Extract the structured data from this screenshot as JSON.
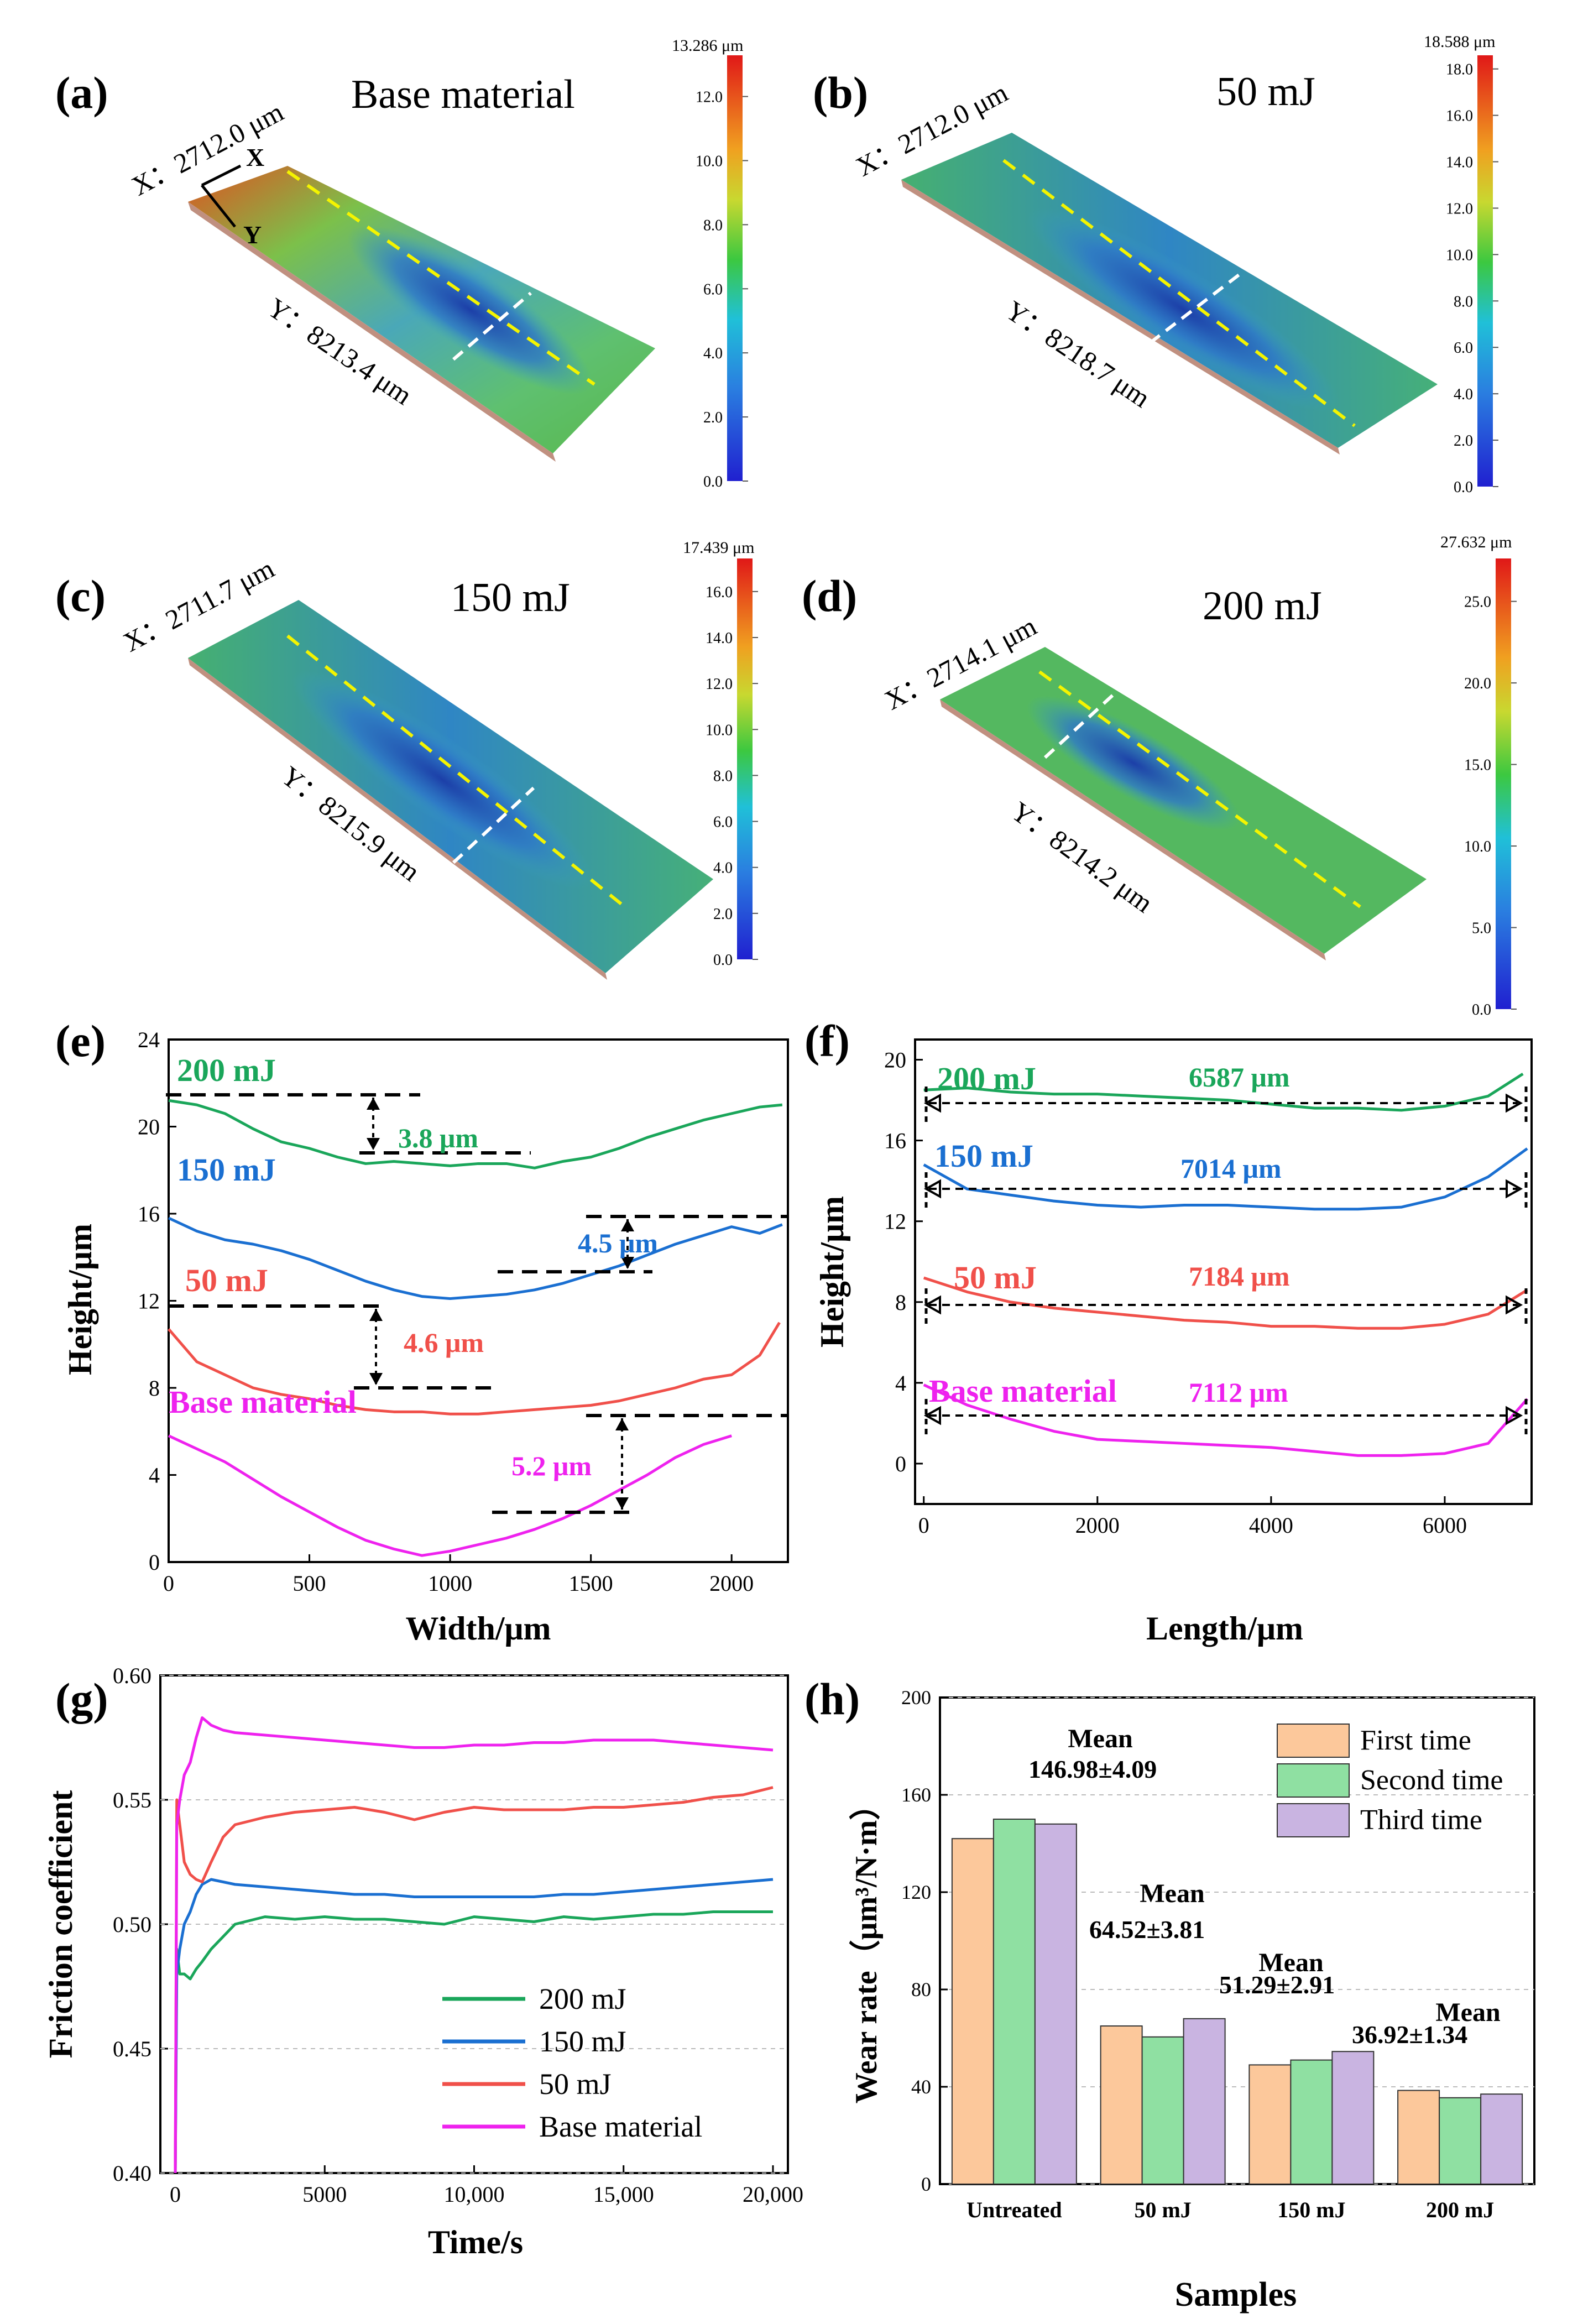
{
  "panels": {
    "a": {
      "tag": "(a)",
      "title": "Base material",
      "x_dim": "X：2712.0 μm",
      "y_dim": "Y：8213.4 μm",
      "scale_max": "13.286 μm",
      "scale_ticks": [
        "0.0",
        "2.0",
        "4.0",
        "6.0",
        "8.0",
        "10.0",
        "12.0"
      ],
      "axis_x": "X",
      "axis_y": "Y"
    },
    "b": {
      "tag": "(b)",
      "title": "50 mJ",
      "x_dim": "X：2712.0 μm",
      "y_dim": "Y：8218.7 μm",
      "scale_max": "18.588 μm",
      "scale_ticks": [
        "0.0",
        "2.0",
        "4.0",
        "6.0",
        "8.0",
        "10.0",
        "12.0",
        "14.0",
        "16.0",
        "18.0"
      ]
    },
    "c": {
      "tag": "(c)",
      "title": "150 mJ",
      "x_dim": "X：2711.7 μm",
      "y_dim": "Y：8215.9 μm",
      "scale_max": "17.439 μm",
      "scale_ticks": [
        "0.0",
        "2.0",
        "4.0",
        "6.0",
        "8.0",
        "10.0",
        "12.0",
        "14.0",
        "16.0"
      ]
    },
    "d": {
      "tag": "(d)",
      "title": "200 mJ",
      "x_dim": "X：2714.1 μm",
      "y_dim": "Y：8214.2 μm",
      "scale_max": "27.632 μm",
      "scale_ticks": [
        "0.0",
        "5.0",
        "10.0",
        "15.0",
        "20.0",
        "25.0"
      ]
    }
  },
  "colors": {
    "200 mJ": "#1aa65a",
    "150 mJ": "#1a6fd1",
    "50 mJ": "#f0504a",
    "Base material": "#ee22ee",
    "orange": "#fcc89b",
    "green": "#8fe0a2",
    "purple": "#c9b4e1"
  },
  "chart_data": [
    {
      "panel": "(e)",
      "type": "line",
      "xlabel": "Width/μm",
      "ylabel": "Height/μm",
      "xlim": [
        0,
        2200
      ],
      "ylim": [
        0,
        24
      ],
      "xticks": [
        "0",
        "500",
        "1000",
        "1500",
        "2000"
      ],
      "yticks": [
        "0",
        "4",
        "8",
        "12",
        "16",
        "20",
        "24"
      ],
      "series": [
        {
          "name": "200 mJ",
          "x": [
            0,
            100,
            200,
            300,
            400,
            500,
            600,
            700,
            800,
            900,
            1000,
            1100,
            1200,
            1300,
            1400,
            1500,
            1600,
            1700,
            1800,
            1900,
            2000,
            2100,
            2180
          ],
          "values": [
            21.2,
            21.0,
            20.6,
            19.9,
            19.3,
            19.0,
            18.6,
            18.3,
            18.4,
            18.3,
            18.2,
            18.3,
            18.3,
            18.1,
            18.4,
            18.6,
            19.0,
            19.5,
            19.9,
            20.3,
            20.6,
            20.9,
            21.0
          ]
        },
        {
          "name": "150 mJ",
          "x": [
            0,
            100,
            200,
            300,
            400,
            500,
            600,
            700,
            800,
            900,
            1000,
            1100,
            1200,
            1300,
            1400,
            1500,
            1600,
            1700,
            1800,
            1900,
            2000,
            2100,
            2180
          ],
          "values": [
            15.8,
            15.2,
            14.8,
            14.6,
            14.3,
            13.9,
            13.4,
            12.9,
            12.5,
            12.2,
            12.1,
            12.2,
            12.3,
            12.5,
            12.8,
            13.2,
            13.6,
            14.1,
            14.6,
            15.0,
            15.4,
            15.1,
            15.5
          ]
        },
        {
          "name": "50 mJ",
          "x": [
            0,
            100,
            200,
            300,
            400,
            500,
            600,
            700,
            800,
            900,
            1000,
            1100,
            1200,
            1300,
            1400,
            1500,
            1600,
            1700,
            1800,
            1900,
            2000,
            2100,
            2170
          ],
          "values": [
            10.7,
            9.2,
            8.6,
            8.0,
            7.7,
            7.5,
            7.2,
            7.0,
            6.9,
            6.9,
            6.8,
            6.8,
            6.9,
            7.0,
            7.1,
            7.2,
            7.4,
            7.7,
            8.0,
            8.4,
            8.6,
            9.5,
            11.0
          ]
        },
        {
          "name": "Base material",
          "x": [
            0,
            100,
            200,
            300,
            400,
            500,
            600,
            700,
            800,
            900,
            1000,
            1100,
            1200,
            1300,
            1400,
            1500,
            1600,
            1700,
            1800,
            1900,
            2000
          ],
          "values": [
            5.8,
            5.2,
            4.6,
            3.8,
            3.0,
            2.3,
            1.6,
            1.0,
            0.6,
            0.3,
            0.5,
            0.8,
            1.1,
            1.5,
            2.0,
            2.6,
            3.3,
            4.0,
            4.8,
            5.4,
            5.8
          ]
        }
      ],
      "labels": [
        {
          "text": "200 mJ",
          "series": "200 mJ"
        },
        {
          "text": "150 mJ",
          "series": "150 mJ"
        },
        {
          "text": "50 mJ",
          "series": "50 mJ"
        },
        {
          "text": "Base material",
          "series": "Base material"
        }
      ],
      "annotations": [
        "3.8 μm",
        "4.5 μm",
        "4.6 μm",
        "5.2 μm"
      ]
    },
    {
      "panel": "(f)",
      "type": "line",
      "xlabel": "Length/μm",
      "ylabel": "Height/μm",
      "xlim": [
        -100,
        7000
      ],
      "ylim": [
        -2,
        21
      ],
      "xticks": [
        "0",
        "2000",
        "4000",
        "6000"
      ],
      "yticks": [
        "0",
        "4",
        "8",
        "12",
        "16",
        "20"
      ],
      "series": [
        {
          "name": "200 mJ",
          "x": [
            0,
            500,
            1000,
            1500,
            2000,
            2500,
            3000,
            3500,
            4000,
            4500,
            5000,
            5500,
            6000,
            6500,
            6900
          ],
          "values": [
            18.5,
            18.6,
            18.4,
            18.3,
            18.3,
            18.2,
            18.1,
            18.0,
            17.8,
            17.6,
            17.6,
            17.5,
            17.7,
            18.2,
            19.3
          ]
        },
        {
          "name": "150 mJ",
          "x": [
            0,
            500,
            1000,
            1500,
            2000,
            2500,
            3000,
            3500,
            4000,
            4500,
            5000,
            5500,
            6000,
            6500,
            6950
          ],
          "values": [
            14.8,
            13.6,
            13.3,
            13.0,
            12.8,
            12.7,
            12.8,
            12.8,
            12.7,
            12.6,
            12.6,
            12.7,
            13.2,
            14.2,
            15.6
          ]
        },
        {
          "name": "50 mJ",
          "x": [
            0,
            500,
            1000,
            1500,
            2000,
            2500,
            3000,
            3500,
            4000,
            4500,
            5000,
            5500,
            6000,
            6500,
            6950
          ],
          "values": [
            9.2,
            8.5,
            8.0,
            7.7,
            7.5,
            7.3,
            7.1,
            7.0,
            6.8,
            6.8,
            6.7,
            6.7,
            6.9,
            7.4,
            8.6
          ]
        },
        {
          "name": "Base material",
          "x": [
            0,
            500,
            1000,
            1500,
            2000,
            2500,
            3000,
            3500,
            4000,
            4500,
            5000,
            5500,
            6000,
            6500,
            6950
          ],
          "values": [
            3.9,
            2.9,
            2.2,
            1.6,
            1.2,
            1.1,
            1.0,
            0.9,
            0.8,
            0.6,
            0.4,
            0.4,
            0.5,
            1.0,
            3.2
          ]
        }
      ],
      "labels": [
        {
          "text": "200 mJ",
          "series": "200 mJ"
        },
        {
          "text": "150 mJ",
          "series": "150 mJ"
        },
        {
          "text": "50 mJ",
          "series": "50 mJ"
        },
        {
          "text": "Base material",
          "series": "Base material"
        }
      ],
      "annotations": [
        "6587 μm",
        "7014 μm",
        "7184 μm",
        "7112 μm"
      ]
    },
    {
      "panel": "(g)",
      "type": "line",
      "xlabel": "Time/s",
      "ylabel": "Friction coefficient",
      "xlim": [
        -500,
        20500
      ],
      "ylim": [
        0.4,
        0.6
      ],
      "xticks": [
        "0",
        "5000",
        "10,000",
        "15,000",
        "20,000"
      ],
      "yticks": [
        "0.40",
        "0.45",
        "0.50",
        "0.55",
        "0.60"
      ],
      "legend": {
        "placement": "lower-right"
      },
      "series": [
        {
          "name": "200 mJ",
          "x": [
            0,
            50,
            150,
            300,
            500,
            700,
            900,
            1200,
            1600,
            2000,
            3000,
            4000,
            5000,
            6000,
            7000,
            8000,
            9000,
            10000,
            11000,
            12000,
            13000,
            14000,
            15000,
            16000,
            17000,
            18000,
            19000,
            20000
          ],
          "values": [
            0.4,
            0.49,
            0.48,
            0.48,
            0.478,
            0.482,
            0.485,
            0.49,
            0.495,
            0.5,
            0.503,
            0.502,
            0.503,
            0.502,
            0.502,
            0.501,
            0.5,
            0.503,
            0.502,
            0.501,
            0.503,
            0.502,
            0.503,
            0.504,
            0.504,
            0.505,
            0.505,
            0.505
          ]
        },
        {
          "name": "150 mJ",
          "x": [
            0,
            50,
            150,
            300,
            500,
            700,
            900,
            1200,
            1600,
            2000,
            3000,
            4000,
            5000,
            6000,
            7000,
            8000,
            9000,
            10000,
            11000,
            12000,
            13000,
            14000,
            15000,
            16000,
            17000,
            18000,
            19000,
            20000
          ],
          "values": [
            0.4,
            0.48,
            0.49,
            0.5,
            0.505,
            0.512,
            0.516,
            0.518,
            0.517,
            0.516,
            0.515,
            0.514,
            0.513,
            0.512,
            0.512,
            0.511,
            0.511,
            0.511,
            0.511,
            0.511,
            0.512,
            0.512,
            0.513,
            0.514,
            0.515,
            0.516,
            0.517,
            0.518
          ]
        },
        {
          "name": "50 mJ",
          "x": [
            0,
            50,
            150,
            300,
            500,
            700,
            900,
            1200,
            1600,
            2000,
            3000,
            4000,
            5000,
            6000,
            7000,
            8000,
            9000,
            10000,
            11000,
            12000,
            13000,
            14000,
            15000,
            16000,
            17000,
            18000,
            19000,
            20000
          ],
          "values": [
            0.4,
            0.55,
            0.54,
            0.525,
            0.52,
            0.518,
            0.517,
            0.525,
            0.535,
            0.54,
            0.543,
            0.545,
            0.546,
            0.547,
            0.545,
            0.542,
            0.545,
            0.547,
            0.546,
            0.546,
            0.546,
            0.547,
            0.547,
            0.548,
            0.549,
            0.551,
            0.552,
            0.555
          ]
        },
        {
          "name": "Base material",
          "x": [
            0,
            50,
            150,
            300,
            500,
            700,
            900,
            1200,
            1600,
            2000,
            3000,
            4000,
            5000,
            6000,
            7000,
            8000,
            9000,
            10000,
            11000,
            12000,
            13000,
            14000,
            15000,
            16000,
            17000,
            18000,
            19000,
            20000
          ],
          "values": [
            0.4,
            0.54,
            0.55,
            0.56,
            0.565,
            0.575,
            0.583,
            0.58,
            0.578,
            0.577,
            0.576,
            0.575,
            0.574,
            0.573,
            0.572,
            0.571,
            0.571,
            0.572,
            0.572,
            0.573,
            0.573,
            0.574,
            0.574,
            0.574,
            0.573,
            0.572,
            0.571,
            0.57
          ]
        }
      ]
    },
    {
      "panel": "(h)",
      "type": "bar",
      "xlabel": "Samples",
      "ylabel": "Wear rate（μm³/N·m）",
      "ylim": [
        0,
        200
      ],
      "yticks": [
        "0",
        "40",
        "80",
        "120",
        "160",
        "200"
      ],
      "categories": [
        "Untreated",
        "50 mJ",
        "150 mJ",
        "200 mJ"
      ],
      "legend": {
        "placement": "top-right"
      },
      "series": [
        {
          "name": "First time",
          "values": [
            142,
            65,
            49,
            38.5
          ]
        },
        {
          "name": "Second time",
          "values": [
            150,
            60.5,
            51,
            35.5
          ]
        },
        {
          "name": "Third time",
          "values": [
            148,
            68,
            54.5,
            37
          ]
        }
      ],
      "means": [
        {
          "label": "Mean",
          "value": "146.98±4.09"
        },
        {
          "label": "Mean",
          "value": "64.52±3.81"
        },
        {
          "label": "Mean",
          "value": "51.29±2.91"
        },
        {
          "label": "Mean",
          "value": "36.92±1.34"
        }
      ]
    }
  ]
}
